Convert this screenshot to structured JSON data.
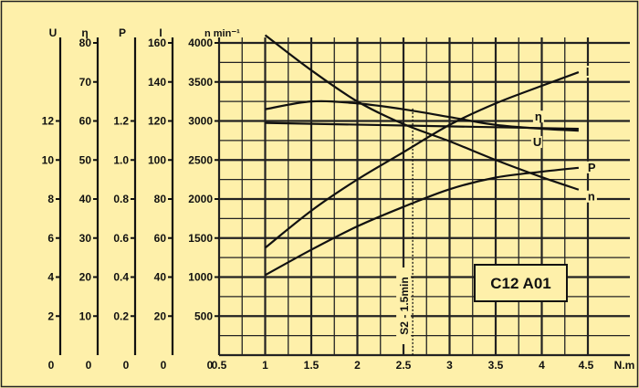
{
  "chart_data": {
    "type": "line",
    "title": "C12 A01",
    "x_axis": {
      "unit": "N.m",
      "range": [
        0.5,
        4.5
      ],
      "ticks": [
        "0.5",
        "1",
        "1.5",
        "2",
        "2.5",
        "3",
        "3.5",
        "4",
        "4.5"
      ]
    },
    "y_axes": [
      {
        "key": "U",
        "label": "U",
        "range": [
          0,
          16
        ],
        "ticks": [
          "0",
          "2",
          "4",
          "6",
          "8",
          "10",
          "12"
        ]
      },
      {
        "key": "eta",
        "label": "η",
        "range": [
          0,
          80
        ],
        "ticks": [
          "0",
          "10",
          "20",
          "30",
          "40",
          "50",
          "60",
          "70",
          "80"
        ]
      },
      {
        "key": "P",
        "label": "P",
        "range": [
          0,
          1.6
        ],
        "ticks": [
          "0",
          "0.2",
          "0.4",
          "0.6",
          "0.8",
          "1.0",
          "1.2"
        ]
      },
      {
        "key": "I",
        "label": "I",
        "range": [
          0,
          160
        ],
        "ticks": [
          "0",
          "20",
          "40",
          "60",
          "80",
          "100",
          "120",
          "140",
          "160"
        ]
      },
      {
        "key": "n",
        "label": "n min⁻¹",
        "range": [
          0,
          4000
        ],
        "ticks": [
          "0",
          "500",
          "1000",
          "1500",
          "2000",
          "2500",
          "3000",
          "3500",
          "4000"
        ]
      }
    ],
    "series": [
      {
        "name": "n",
        "axis": "n",
        "x": [
          1.0,
          1.5,
          2.0,
          2.5,
          3.0,
          3.5,
          4.0,
          4.4
        ],
        "y": [
          4100,
          3650,
          3250,
          2960,
          2740,
          2500,
          2280,
          2120
        ]
      },
      {
        "name": "I",
        "axis": "I",
        "x": [
          1.0,
          1.5,
          2.0,
          2.5,
          3.0,
          3.5,
          4.0,
          4.4
        ],
        "y": [
          55,
          74,
          90,
          104,
          118,
          129,
          138,
          145
        ]
      },
      {
        "name": "η",
        "axis": "eta",
        "x": [
          1.0,
          1.5,
          2.0,
          2.5,
          3.0,
          3.5,
          4.0,
          4.4
        ],
        "y": [
          63,
          65,
          64.5,
          63,
          61,
          59,
          58,
          57.5
        ]
      },
      {
        "name": "U",
        "axis": "U",
        "x": [
          1.0,
          4.4
        ],
        "y": [
          11.9,
          11.6
        ]
      },
      {
        "name": "P",
        "axis": "P",
        "x": [
          1.0,
          1.5,
          2.0,
          2.5,
          3.0,
          3.5,
          4.0,
          4.4
        ],
        "y": [
          0.41,
          0.54,
          0.66,
          0.76,
          0.85,
          0.91,
          0.94,
          0.96
        ]
      }
    ],
    "annotations": [
      {
        "text": "S2 - 1.5min",
        "x": 2.6
      }
    ],
    "grid": true
  }
}
